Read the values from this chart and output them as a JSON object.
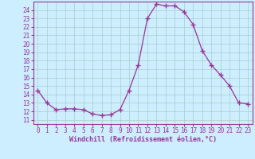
{
  "x": [
    0,
    1,
    2,
    3,
    4,
    5,
    6,
    7,
    8,
    9,
    10,
    11,
    12,
    13,
    14,
    15,
    16,
    17,
    18,
    19,
    20,
    21,
    22,
    23
  ],
  "y": [
    14.5,
    13.0,
    12.2,
    12.3,
    12.3,
    12.2,
    11.7,
    11.5,
    11.6,
    12.2,
    14.5,
    17.5,
    23.0,
    24.7,
    24.5,
    24.5,
    23.8,
    22.3,
    19.2,
    17.5,
    16.3,
    15.0,
    13.0,
    12.9
  ],
  "line_color": "#993399",
  "marker": "+",
  "marker_size": 4,
  "bg_color": "#cceeff",
  "grid_color": "#aacccc",
  "xlabel": "Windchill (Refroidissement éolien,°C)",
  "ylabel_ticks": [
    11,
    12,
    13,
    14,
    15,
    16,
    17,
    18,
    19,
    20,
    21,
    22,
    23,
    24
  ],
  "ylim": [
    10.5,
    25.0
  ],
  "xlim": [
    -0.5,
    23.5
  ],
  "tick_fontsize": 5.5,
  "xlabel_fontsize": 6.0
}
